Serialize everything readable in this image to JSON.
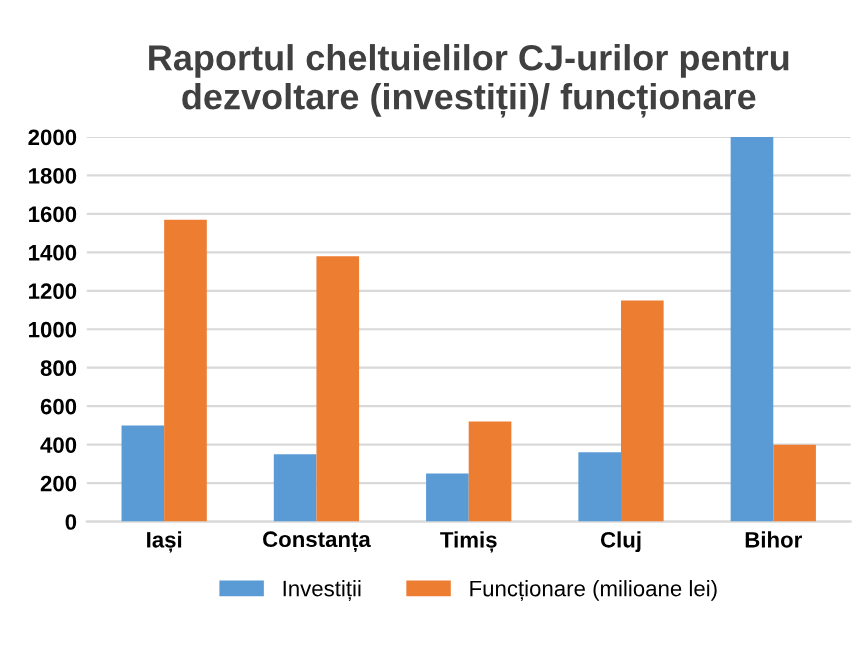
{
  "chart_data": {
    "type": "bar",
    "title": "Raportul cheltuielilor CJ-urilor pentru\ndezvoltare (investiții)/ funcționare",
    "categories": [
      "Iași",
      "Constanța",
      "Timiș",
      "Cluj",
      "Bihor"
    ],
    "series": [
      {
        "name": "Investiții",
        "color": "#5b9bd5",
        "values": [
          500,
          350,
          250,
          360,
          2000
        ]
      },
      {
        "name": "Funcționare (milioane lei)",
        "color": "#ed7d31",
        "values": [
          1570,
          1380,
          520,
          1150,
          400
        ]
      }
    ],
    "ylim": [
      0,
      2000
    ],
    "yticks": [
      0,
      200,
      400,
      600,
      800,
      1000,
      1200,
      1400,
      1600,
      1800,
      2000
    ],
    "grid": "y",
    "legend": "bottom"
  }
}
